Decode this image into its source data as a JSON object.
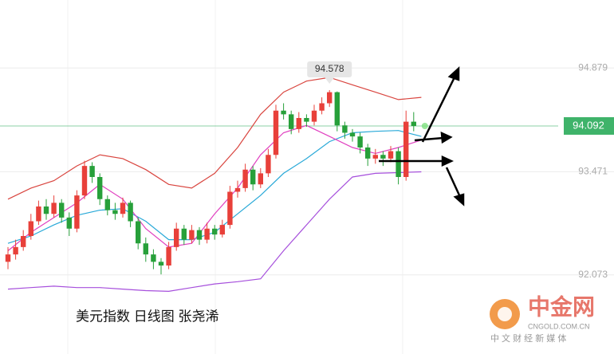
{
  "chart_data": {
    "type": "candlestick",
    "caption": "美元指数 日线图 张尧浠",
    "ylim": [
      91.0,
      95.8
    ],
    "yticks": [
      92.073,
      93.471,
      94.879
    ],
    "grid": true,
    "up_color": "#e8403a",
    "down_color": "#27a03a",
    "open": [
      92.25,
      92.35,
      92.45,
      92.6,
      92.8,
      93.0,
      92.9,
      93.05,
      92.85,
      92.7,
      93.15,
      93.55,
      93.4,
      93.1,
      92.95,
      92.9,
      93.05,
      92.8,
      92.5,
      92.35,
      92.25,
      92.2,
      92.45,
      92.7,
      92.55,
      92.68,
      92.55,
      92.7,
      92.62,
      92.75,
      93.2,
      93.25,
      93.5,
      93.3,
      93.45,
      93.7,
      94.3,
      94.25,
      94.05,
      94.2,
      94.15,
      94.3,
      94.4,
      94.55,
      94.1,
      94.0,
      93.95,
      93.8,
      93.65,
      93.7,
      93.65,
      93.75,
      93.4,
      94.15
    ],
    "high": [
      92.45,
      92.55,
      92.68,
      92.9,
      93.08,
      93.1,
      93.15,
      93.1,
      92.92,
      93.22,
      93.62,
      93.6,
      93.45,
      93.15,
      93.05,
      93.12,
      93.08,
      92.85,
      92.58,
      92.42,
      92.3,
      92.52,
      92.78,
      92.75,
      92.75,
      92.72,
      92.78,
      92.75,
      92.82,
      93.28,
      93.35,
      93.58,
      93.55,
      93.52,
      93.78,
      94.38,
      94.4,
      94.3,
      94.28,
      94.25,
      94.38,
      94.48,
      94.578,
      94.56,
      94.15,
      94.05,
      94.0,
      93.85,
      93.78,
      93.75,
      93.82,
      93.8,
      94.3,
      94.28
    ],
    "low": [
      92.15,
      92.28,
      92.4,
      92.55,
      92.75,
      92.82,
      92.85,
      92.78,
      92.6,
      92.65,
      93.1,
      93.32,
      93.02,
      92.88,
      92.82,
      92.85,
      92.72,
      92.42,
      92.25,
      92.15,
      92.08,
      92.15,
      92.4,
      92.48,
      92.5,
      92.48,
      92.5,
      92.55,
      92.58,
      92.7,
      93.12,
      93.2,
      93.22,
      93.25,
      93.4,
      93.65,
      94.18,
      93.98,
      94.0,
      94.08,
      94.1,
      94.25,
      94.35,
      94.02,
      93.92,
      93.88,
      93.72,
      93.55,
      93.58,
      93.55,
      93.6,
      93.3,
      93.35,
      94.02
    ],
    "close": [
      92.35,
      92.45,
      92.6,
      92.8,
      93.0,
      92.9,
      93.05,
      92.85,
      92.7,
      93.15,
      93.55,
      93.4,
      93.1,
      92.95,
      92.9,
      93.05,
      92.8,
      92.5,
      92.35,
      92.25,
      92.2,
      92.45,
      92.7,
      92.55,
      92.68,
      92.55,
      92.7,
      92.62,
      92.75,
      93.2,
      93.25,
      93.5,
      93.3,
      93.45,
      93.7,
      94.3,
      94.25,
      94.05,
      94.2,
      94.15,
      94.3,
      94.4,
      94.55,
      94.1,
      94.0,
      93.95,
      93.8,
      93.65,
      93.7,
      93.65,
      93.75,
      93.4,
      94.15,
      94.092
    ],
    "lines": [
      {
        "color": "#d9453f",
        "x": [
          0,
          3,
          6,
          9,
          12,
          15,
          18,
          21,
          24,
          27,
          30,
          33,
          36,
          39,
          42,
          45,
          48,
          51,
          54
        ],
        "values": [
          93.1,
          93.25,
          93.35,
          93.55,
          93.7,
          93.65,
          93.5,
          93.3,
          93.25,
          93.45,
          93.8,
          94.25,
          94.55,
          94.7,
          94.75,
          94.65,
          94.55,
          94.45,
          94.48
        ]
      },
      {
        "color": "#29a9d8",
        "x": [
          0,
          3,
          6,
          9,
          12,
          15,
          18,
          21,
          24,
          27,
          30,
          33,
          36,
          39,
          42,
          45,
          48,
          51,
          54
        ],
        "values": [
          92.5,
          92.6,
          92.75,
          92.88,
          92.95,
          92.97,
          92.8,
          92.55,
          92.55,
          92.65,
          92.9,
          93.15,
          93.45,
          93.65,
          93.88,
          94.0,
          94.02,
          94.03,
          93.95
        ]
      },
      {
        "color": "#a64fdc",
        "x": [
          0,
          3,
          6,
          9,
          12,
          15,
          18,
          21,
          24,
          27,
          30,
          33,
          36,
          39,
          42,
          45,
          48,
          51,
          54
        ],
        "values": [
          91.88,
          91.9,
          91.92,
          91.9,
          91.9,
          91.88,
          91.86,
          91.85,
          91.9,
          91.95,
          91.98,
          92.02,
          92.4,
          92.75,
          93.1,
          93.4,
          93.45,
          93.46,
          93.47
        ]
      },
      {
        "color": "#e040c0",
        "x": [
          0,
          3,
          6,
          9,
          12,
          15,
          18,
          21,
          24,
          27,
          30,
          33,
          36,
          39,
          42,
          45,
          48,
          51,
          54
        ],
        "values": [
          92.4,
          92.65,
          92.85,
          93.05,
          93.3,
          93.1,
          92.7,
          92.45,
          92.5,
          92.9,
          93.25,
          93.7,
          94.0,
          94.1,
          93.95,
          93.8,
          93.72,
          93.8,
          93.9
        ]
      }
    ],
    "last_price": 94.092,
    "last_price_color": "#3fb36a",
    "max_label": 94.578
  },
  "watermark": {
    "brand": "中金网",
    "domain": "CNGOLD.COM.CN",
    "slogan": "中 文 财 经 新 媒 体"
  }
}
